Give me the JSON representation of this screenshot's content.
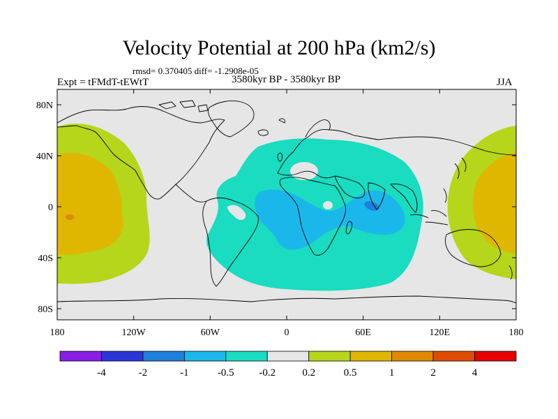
{
  "title": "Velocity Potential at 200 hPa (km2/s)",
  "stats_text": "rmsd= 0.370405 diff= -1.2908e-05",
  "experiment_label": "Expt = tFMdT-tEWtT",
  "period_label": "3580kyr BP - 3580kyr BP",
  "season_label": "JJA",
  "lat_ticks": [
    "80N",
    "40N",
    "0",
    "40S",
    "80S"
  ],
  "lon_ticks": [
    "180",
    "120W",
    "60W",
    "0",
    "60E",
    "120E",
    "180"
  ],
  "colorbar": {
    "labels": [
      "-4",
      "-2",
      "-1",
      "-0.5",
      "-0.2",
      "0.2",
      "0.5",
      "1",
      "2",
      "4"
    ],
    "colors": [
      "#8a1ee6",
      "#2c36d8",
      "#1e7fdc",
      "#1ab8ea",
      "#19dcc0",
      "#e6e6e6",
      "#b5d61a",
      "#e0b700",
      "#e08a00",
      "#e04d00",
      "#e60000"
    ]
  },
  "map": {
    "land_outline_color": "#000000",
    "ocean_background": "#e6e6e6"
  }
}
